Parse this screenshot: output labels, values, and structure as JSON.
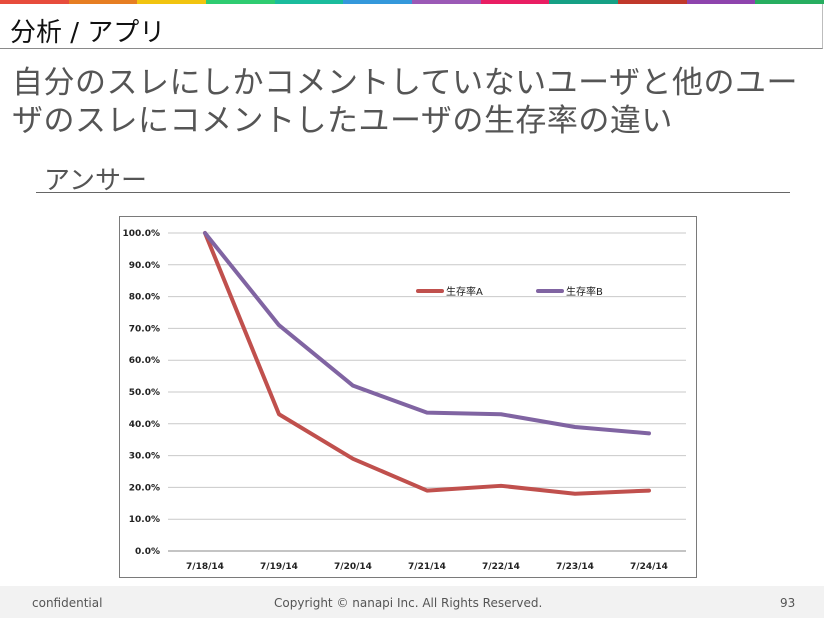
{
  "colors": {
    "stripe": [
      "#e74c3c",
      "#e67e22",
      "#f1c40f",
      "#2ecc71",
      "#1abc9c",
      "#3498db",
      "#9b59b6",
      "#e91e63",
      "#16a085",
      "#c0392b",
      "#8e44ad",
      "#27ae60"
    ],
    "series_a": "#c0504d",
    "series_b": "#8064a2",
    "grid": "#c9c9c9"
  },
  "header": {
    "title": "分析 / アプリ"
  },
  "slide": {
    "title": "自分のスレにしかコメントしていないユーザと他のユーザのスレにコメントしたユーザの生存率の違い",
    "section": "アンサー"
  },
  "chart_data": {
    "type": "line",
    "categories": [
      "7/18/14",
      "7/19/14",
      "7/20/14",
      "7/21/14",
      "7/22/14",
      "7/23/14",
      "7/24/14"
    ],
    "y_ticks": [
      "0.0%",
      "10.0%",
      "20.0%",
      "30.0%",
      "40.0%",
      "50.0%",
      "60.0%",
      "70.0%",
      "80.0%",
      "90.0%",
      "100.0%"
    ],
    "ylim": [
      0,
      100
    ],
    "grid": true,
    "legend": "top-right",
    "series": [
      {
        "name": "生存率A",
        "values": [
          100,
          43,
          29,
          19,
          20.5,
          18,
          19
        ]
      },
      {
        "name": "生存率B",
        "values": [
          100,
          71,
          52,
          43.5,
          43,
          39,
          37
        ]
      }
    ]
  },
  "footer": {
    "left": "confidential",
    "center": "Copyright © nanapi Inc. All Rights Reserved.",
    "page": "93"
  }
}
